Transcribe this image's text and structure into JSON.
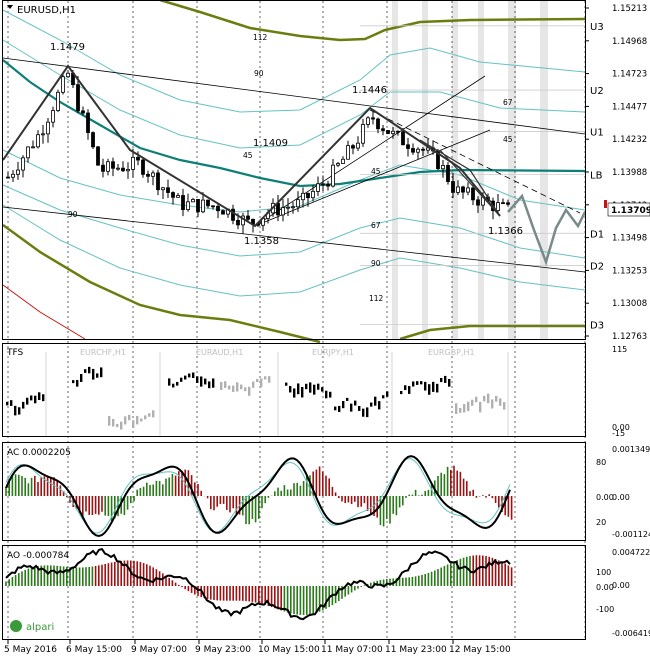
{
  "symbol_title": "EURUSD,H1",
  "colors": {
    "frame": "#000000",
    "candle": "#000000",
    "envelope_outer": "#6b7d0e",
    "envelope_mid": "#66c2c2",
    "ma_teal": "#0d7f78",
    "red_line": "#cc1111",
    "forecast": "#7a8a8a",
    "shade": "#e6e6e6",
    "ac_up": "#2a7a1a",
    "ac_down": "#a01010",
    "highlight": "#cc1111"
  },
  "price_axis": {
    "ticks": [
      "1.15213",
      "1.14968",
      "1.14723",
      "1.14477",
      "1.14232",
      "1.13988",
      "1.13743",
      "1.13498",
      "1.13253",
      "1.13008",
      "1.12763"
    ],
    "current_price": "1.13709"
  },
  "levels": [
    {
      "label": "U3",
      "price": 1.1508
    },
    {
      "label": "U2",
      "price": 1.146
    },
    {
      "label": "U1",
      "price": 1.1429
    },
    {
      "label": "LB",
      "price": 1.1397
    },
    {
      "label": "D1",
      "price": 1.1353
    },
    {
      "label": "D2",
      "price": 1.1329
    },
    {
      "label": "D3",
      "price": 1.1285
    }
  ],
  "price_annotations": [
    {
      "text": "1.1479"
    },
    {
      "text": "1.1446"
    },
    {
      "text": "1.1409"
    },
    {
      "text": "1.1358"
    },
    {
      "text": "1.1366"
    }
  ],
  "angle_labels": [
    "112",
    "90",
    "67",
    "45",
    "45",
    "90",
    "67",
    "90",
    "112"
  ],
  "tfs_panel": {
    "label": "TFS",
    "pairs": [
      "EURCHF,H1",
      "EURAUD,H1",
      "EURJPY,H1",
      "EURGBP,H1"
    ],
    "scale": [
      "115",
      "0.00",
      "-15"
    ]
  },
  "ac_panel": {
    "label": "AC 0.0002205",
    "scale_left": [
      "80",
      "0.00",
      "20"
    ],
    "scale_right": [
      "0.001349",
      "0.00",
      "-0.001124"
    ]
  },
  "ao_panel": {
    "label": "AO -0.000784",
    "scale_left": [
      "100",
      "0.00",
      "-100"
    ],
    "scale_right": [
      "0.004722",
      "0.00",
      "-0.006419"
    ],
    "logo": "alpari"
  },
  "time_axis": [
    "5 May 2016",
    "6 May 15:00",
    "9 May 07:00",
    "9 May 23:00",
    "10 May 15:00",
    "11 May 07:00",
    "11 May 23:00",
    "12 May 15:00"
  ]
}
